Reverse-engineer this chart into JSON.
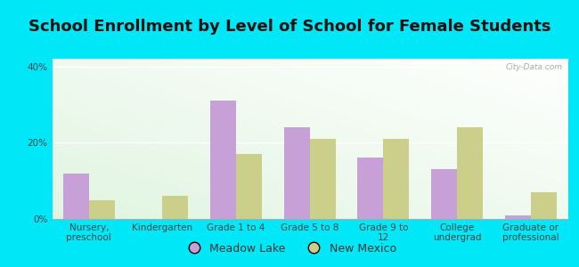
{
  "title": "School Enrollment by Level of School for Female Students",
  "categories": [
    "Nursery,\npreschool",
    "Kindergarten",
    "Grade 1 to 4",
    "Grade 5 to 8",
    "Grade 9 to\n12",
    "College\nundergrad",
    "Graduate or\nprofessional"
  ],
  "meadow_lake": [
    12,
    0,
    31,
    24,
    16,
    13,
    1
  ],
  "new_mexico": [
    5,
    6,
    17,
    21,
    21,
    24,
    7
  ],
  "meadow_lake_color": "#c8a0d8",
  "new_mexico_color": "#cccf8a",
  "bar_width": 0.35,
  "ylim": [
    0,
    42
  ],
  "yticks": [
    0,
    20,
    40
  ],
  "ytick_labels": [
    "0%",
    "20%",
    "40%"
  ],
  "background_outer": "#00e8f8",
  "legend_labels": [
    "Meadow Lake",
    "New Mexico"
  ],
  "watermark": "City-Data.com",
  "title_fontsize": 13,
  "axis_fontsize": 7.5,
  "legend_fontsize": 9
}
